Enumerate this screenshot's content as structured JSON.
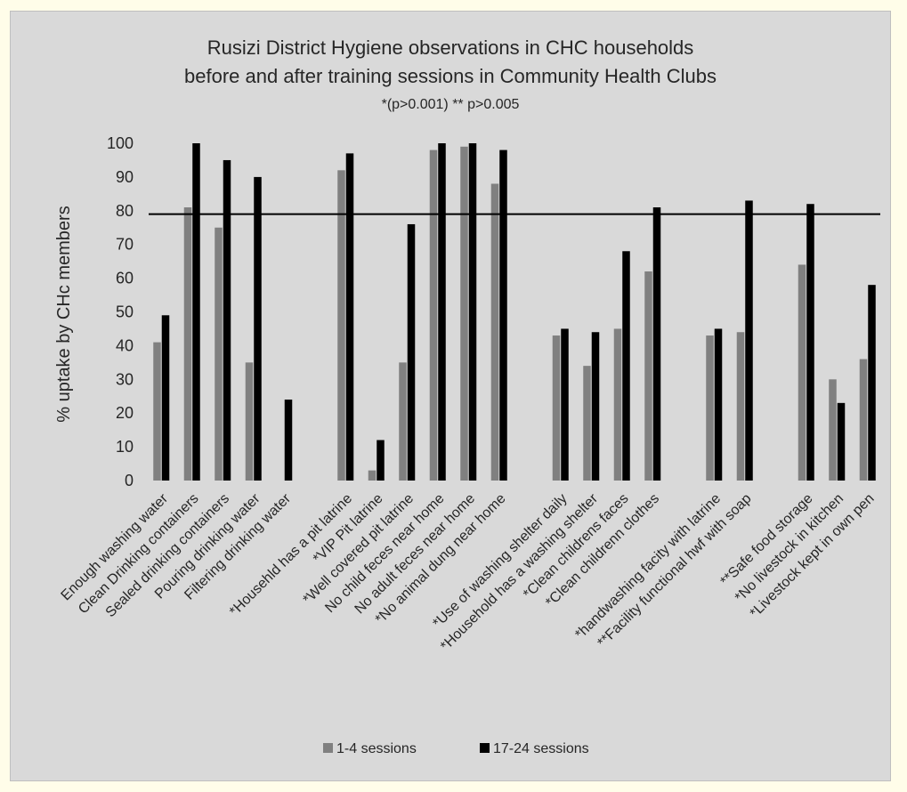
{
  "chart_data": {
    "type": "bar",
    "title_lines": [
      "Rusizi District  Hygiene observations in CHC households",
      "before and after training sessions in Community Health Clubs"
    ],
    "subtitle": "*(p>0.001) ** p>0.005",
    "ylabel": "% uptake by CHc members",
    "xlabel": "",
    "ylim": [
      0,
      100
    ],
    "yticks": [
      0,
      10,
      20,
      30,
      40,
      50,
      60,
      70,
      80,
      90,
      100
    ],
    "grid": false,
    "legend_position": "bottom",
    "reference_line": 79,
    "categories": [
      "Enough washing water",
      "Clean Drinking containers",
      "Sealed drinking containers",
      "Pouring drinking water",
      "Filtering drinking water",
      "",
      "*Househld has a pit latrine",
      "*VIP Pit latrine",
      "*Well covered pit latrine",
      "No child feces near home",
      "No adult feces near home",
      "*No animal dung near home",
      "",
      "*Use of washing  shelter daily",
      "*Household has a washing shelter",
      "*Clean childrens faces",
      "*Clean childrenn clothes",
      "",
      "*handwashing facity with latrine",
      "**Facility functional hwf with soap",
      "",
      "**Safe food storage",
      "*No livestock in kitchen",
      "*Livestock kept in own pen"
    ],
    "series": [
      {
        "name": "1-4 sessions",
        "color": "#808080",
        "values": [
          41,
          81,
          75,
          35,
          null,
          null,
          92,
          3,
          35,
          98,
          99,
          88,
          null,
          43,
          34,
          45,
          62,
          null,
          43,
          44,
          null,
          64,
          30,
          36
        ]
      },
      {
        "name": "17-24 sessions",
        "color": "#000000",
        "values": [
          49,
          100,
          95,
          90,
          24,
          null,
          97,
          12,
          76,
          100,
          100,
          98,
          null,
          45,
          44,
          68,
          81,
          null,
          45,
          83,
          null,
          82,
          23,
          58
        ]
      }
    ]
  }
}
